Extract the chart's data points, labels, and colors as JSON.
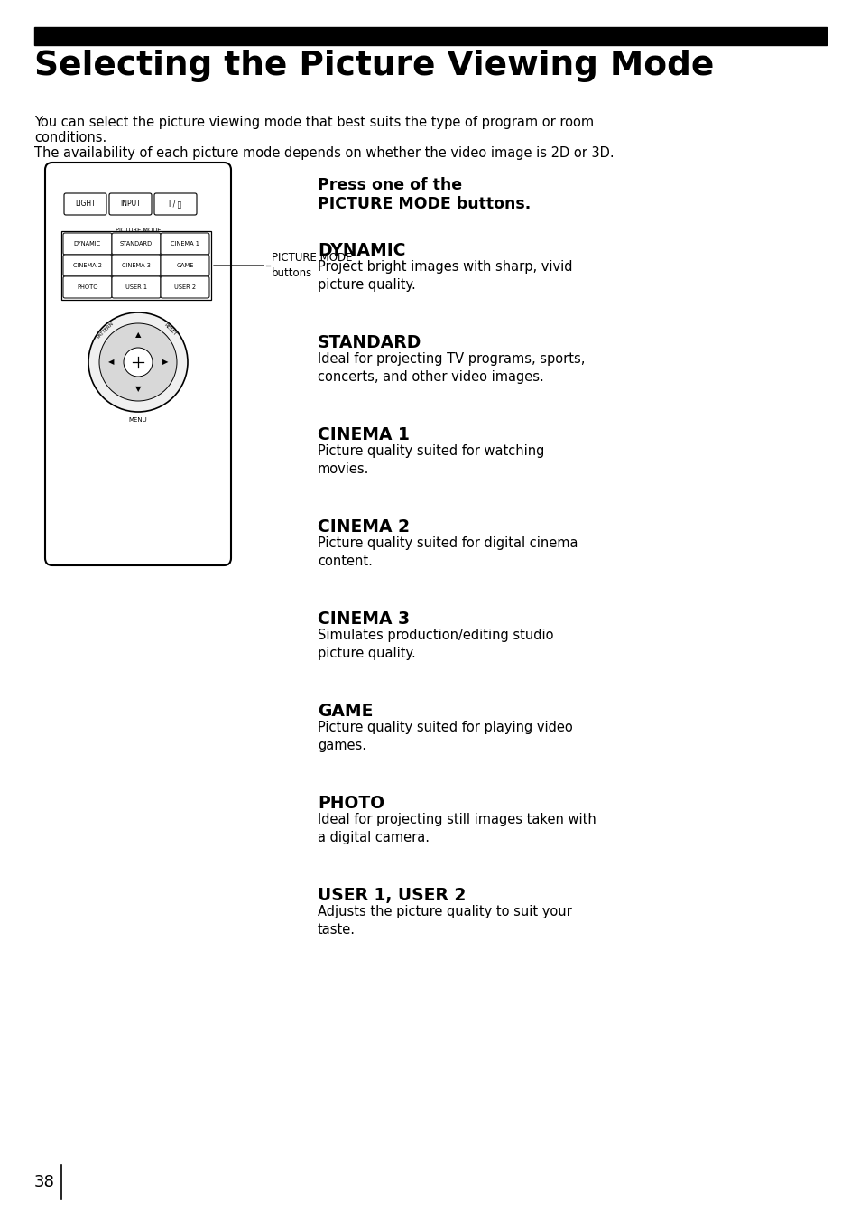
{
  "bg_color": "#ffffff",
  "title_bar_color": "#000000",
  "title": "Selecting the Picture Viewing Mode",
  "intro_line1": "You can select the picture viewing mode that best suits the type of program or room",
  "intro_line2": "conditions.",
  "intro_line3": "The availability of each picture mode depends on whether the video image is 2D or 3D.",
  "press_line1": "Press one of the",
  "press_line2": "PICTURE MODE buttons.",
  "sections": [
    {
      "heading": "DYNAMIC",
      "body": "Project bright images with sharp, vivid\npicture quality."
    },
    {
      "heading": "STANDARD",
      "body": "Ideal for projecting TV programs, sports,\nconcerts, and other video images."
    },
    {
      "heading": "CINEMA 1",
      "body": "Picture quality suited for watching\nmovies."
    },
    {
      "heading": "CINEMA 2",
      "body": "Picture quality suited for digital cinema\ncontent."
    },
    {
      "heading": "CINEMA 3",
      "body": "Simulates production/editing studio\npicture quality."
    },
    {
      "heading": "GAME",
      "body": "Picture quality suited for playing video\ngames."
    },
    {
      "heading": "PHOTO",
      "body": "Ideal for projecting still images taken with\na digital camera."
    },
    {
      "heading": "USER 1, USER 2",
      "body": "Adjusts the picture quality to suit your\ntaste."
    }
  ],
  "page_number": "38",
  "remote_label_line1": "PICTURE MODE",
  "remote_label_line2": "buttons"
}
